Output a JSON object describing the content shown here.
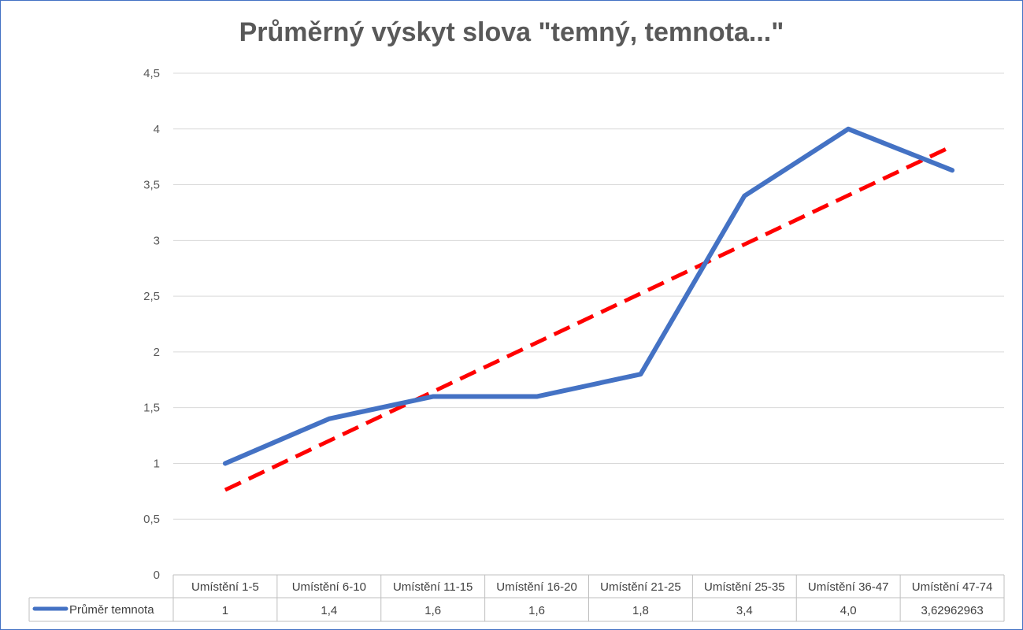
{
  "chart_data": {
    "type": "line",
    "title": "Průměrný výskyt slova \"temný, temnota...\"",
    "categories": [
      "Umístění  1-5",
      "Umístění  6-10",
      "Umístění  11-15",
      "Umístění  16-20",
      "Umístění  21-25",
      "Umístění  25-35",
      "Umístění  36-47",
      "Umístění  47-74"
    ],
    "series": [
      {
        "name": "Průměr temnota",
        "values": [
          1,
          1.4,
          1.6,
          1.6,
          1.8,
          3.4,
          4.0,
          3.62962963
        ],
        "value_labels": [
          "1",
          "1,4",
          "1,6",
          "1,6",
          "1,8",
          "3,4",
          "4,0",
          "3,62962963"
        ],
        "color": "#4472c4"
      }
    ],
    "trendline": {
      "type": "linear",
      "color": "#ff0000",
      "style": "dashed"
    },
    "yticks": [
      "0",
      "0,5",
      "1",
      "1,5",
      "2",
      "2,5",
      "3",
      "3,5",
      "4",
      "4,5"
    ],
    "ylim": [
      0,
      4.5
    ],
    "grid": true,
    "legend": "data-table"
  }
}
